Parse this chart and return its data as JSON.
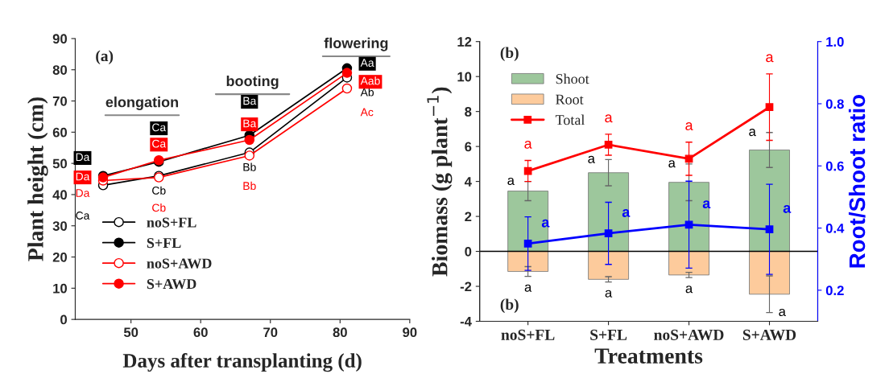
{
  "chart_data": [
    {
      "type": "line",
      "xlabel": "Days after transplanting (d)",
      "ylabel": "Plant height (cm)",
      "x": [
        46,
        54,
        67,
        81
      ],
      "xlim": [
        42,
        90
      ],
      "xticks": [
        50,
        60,
        70,
        80,
        90
      ],
      "ylim": [
        0,
        90
      ],
      "yticks": [
        0,
        10,
        20,
        30,
        40,
        50,
        60,
        70,
        80,
        90
      ],
      "marker": "circle",
      "legend": "bottom left",
      "grid": false,
      "series": [
        {
          "name": "noS+FL",
          "color": "#000000",
          "values": [
            43,
            46,
            53.5,
            77.5
          ],
          "value_labels": [
            "Ca",
            "Cb",
            "Bb",
            "Ab"
          ]
        },
        {
          "name": "S+FL",
          "color": "#000000",
          "values": [
            46,
            50.5,
            59,
            80.5
          ],
          "value_labels": [
            "Da",
            "Ca",
            "Ba",
            "Aa"
          ]
        },
        {
          "name": "noS+AWD",
          "color": "#ff0000",
          "values": [
            44.5,
            45.5,
            52.5,
            74
          ],
          "value_labels": [
            "Da",
            "Cb",
            "Bb",
            "Ac"
          ]
        },
        {
          "name": "S+AWD",
          "color": "#ff0000",
          "values": [
            45.5,
            51,
            57.5,
            79
          ],
          "value_labels": [
            "Da",
            "Ca",
            "Ba",
            "Aab"
          ]
        }
      ],
      "annotations": [
        "(a)",
        "elongation",
        "booting",
        "flowering"
      ]
    },
    {
      "type": "bar",
      "xlabel": "Treatments",
      "ylabel": "Biomass (g plant$^{−1}$)",
      "y2label": "Root/Shoot ratio",
      "categories": [
        "noS+FL",
        "S+FL",
        "noS+AWD",
        "S+AWD"
      ],
      "ylim": [
        -4,
        12
      ],
      "yticks": [
        -4,
        -2,
        0,
        2,
        4,
        6,
        8,
        10,
        12
      ],
      "y2lim": [
        0.1,
        1.0
      ],
      "y2ticks": [
        0.2,
        0.4,
        0.6,
        0.8,
        {
          "value": 1.0,
          "label": "1.0"
        }
      ],
      "stacked": true,
      "marker": "square",
      "legend": "top left",
      "grid": false,
      "ref_lines": [
        {
          "axis": "y",
          "value": 0,
          "color": "#000000"
        }
      ],
      "series": [
        {
          "name": "Shoot",
          "type": "bar",
          "color": "#9dc79c",
          "values": [
            3.45,
            4.5,
            3.95,
            5.8
          ],
          "errors": [
            0.55,
            0.75,
            1.05,
            1.0
          ],
          "value_labels": [
            "a",
            "a",
            "a",
            "a"
          ]
        },
        {
          "name": "Root",
          "type": "bar",
          "color": "#fdcb9c",
          "values": [
            -1.15,
            -1.6,
            -1.35,
            -2.45
          ],
          "errors": [
            0.28,
            0.15,
            0.15,
            1.05
          ],
          "value_labels": [
            "a",
            "a",
            "a",
            "a"
          ]
        },
        {
          "name": "Total",
          "type": "line",
          "color": "#ff0000",
          "values": [
            4.6,
            6.1,
            5.3,
            8.25
          ],
          "errors": [
            0.6,
            0.6,
            0.95,
            1.9
          ],
          "value_labels": [
            "a",
            "a",
            "a",
            "a"
          ]
        },
        {
          "type": "line",
          "axis": "y2",
          "color": "#0000ff",
          "values": [
            0.35,
            0.383,
            0.411,
            0.396
          ],
          "errors": [
            0.086,
            0.1,
            0.14,
            0.145
          ],
          "value_labels": [
            "a",
            "a",
            "a",
            "a"
          ]
        }
      ],
      "annotations": [
        "(b)",
        "(b)"
      ]
    }
  ]
}
